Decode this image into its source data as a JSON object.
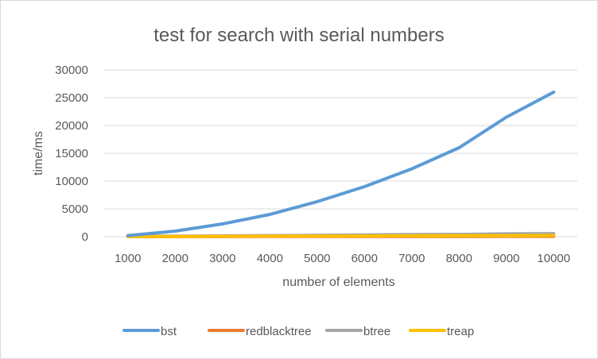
{
  "chart_data": {
    "type": "line",
    "title": "test for search with serial numbers",
    "xlabel": "number of elements",
    "ylabel": "time/ms",
    "categories": [
      "1000",
      "2000",
      "3000",
      "4000",
      "5000",
      "6000",
      "7000",
      "8000",
      "9000",
      "10000"
    ],
    "ylim": [
      0,
      30000
    ],
    "yticks": [
      0,
      5000,
      10000,
      15000,
      20000,
      25000,
      30000
    ],
    "ytick_labels": [
      "0",
      "5000",
      "10000",
      "15000",
      "20000",
      "25000",
      "30000"
    ],
    "grid": true,
    "legend_position": "bottom",
    "series": [
      {
        "name": "bst",
        "color": "#5b9bd5",
        "values": [
          200,
          1000,
          2300,
          4000,
          6300,
          9000,
          12200,
          16000,
          21500,
          26000
        ]
      },
      {
        "name": "redblacktree",
        "color": "#ed7d31",
        "values": [
          10,
          15,
          20,
          25,
          30,
          35,
          40,
          45,
          50,
          55
        ]
      },
      {
        "name": "btree",
        "color": "#a5a5a5",
        "values": [
          50,
          100,
          150,
          200,
          250,
          320,
          380,
          420,
          520,
          550
        ]
      },
      {
        "name": "treap",
        "color": "#ffc000",
        "values": [
          20,
          40,
          70,
          90,
          110,
          130,
          150,
          170,
          190,
          210
        ]
      }
    ]
  }
}
